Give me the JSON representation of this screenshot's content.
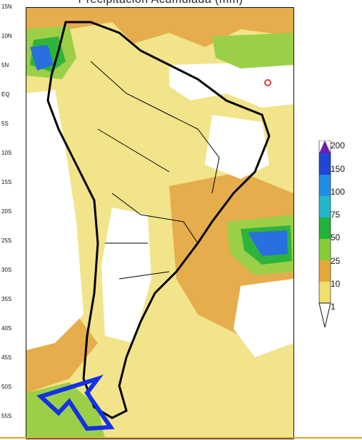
{
  "title": "Precipitación Acumulada (mm)",
  "lat_labels": [
    "15N",
    "10N",
    "5N",
    "EQ",
    "5S",
    "10S",
    "15S",
    "20S",
    "25S",
    "30S",
    "35S",
    "40S",
    "45S",
    "50S",
    "55S"
  ],
  "legend": {
    "values": [
      "200",
      "150",
      "100",
      "75",
      "50",
      "25",
      "10",
      "1"
    ],
    "colors": [
      "#6a1fb0",
      "#2146d4",
      "#1e8fe6",
      "#23b8c8",
      "#23b23a",
      "#88cc3a",
      "#e6a83a",
      "#eedf6e"
    ]
  },
  "palette": {
    "white": "#ffffff",
    "light_yellow": "#f1e48a",
    "orange": "#e6ad4c",
    "light_green": "#9ccf48",
    "green": "#2fb43a",
    "cyan": "#2cc0c2",
    "blue": "#2a6fe0",
    "dark_blue": "#2c3fd0",
    "arrow": "#1431e6",
    "marker": "#e43a3a"
  }
}
